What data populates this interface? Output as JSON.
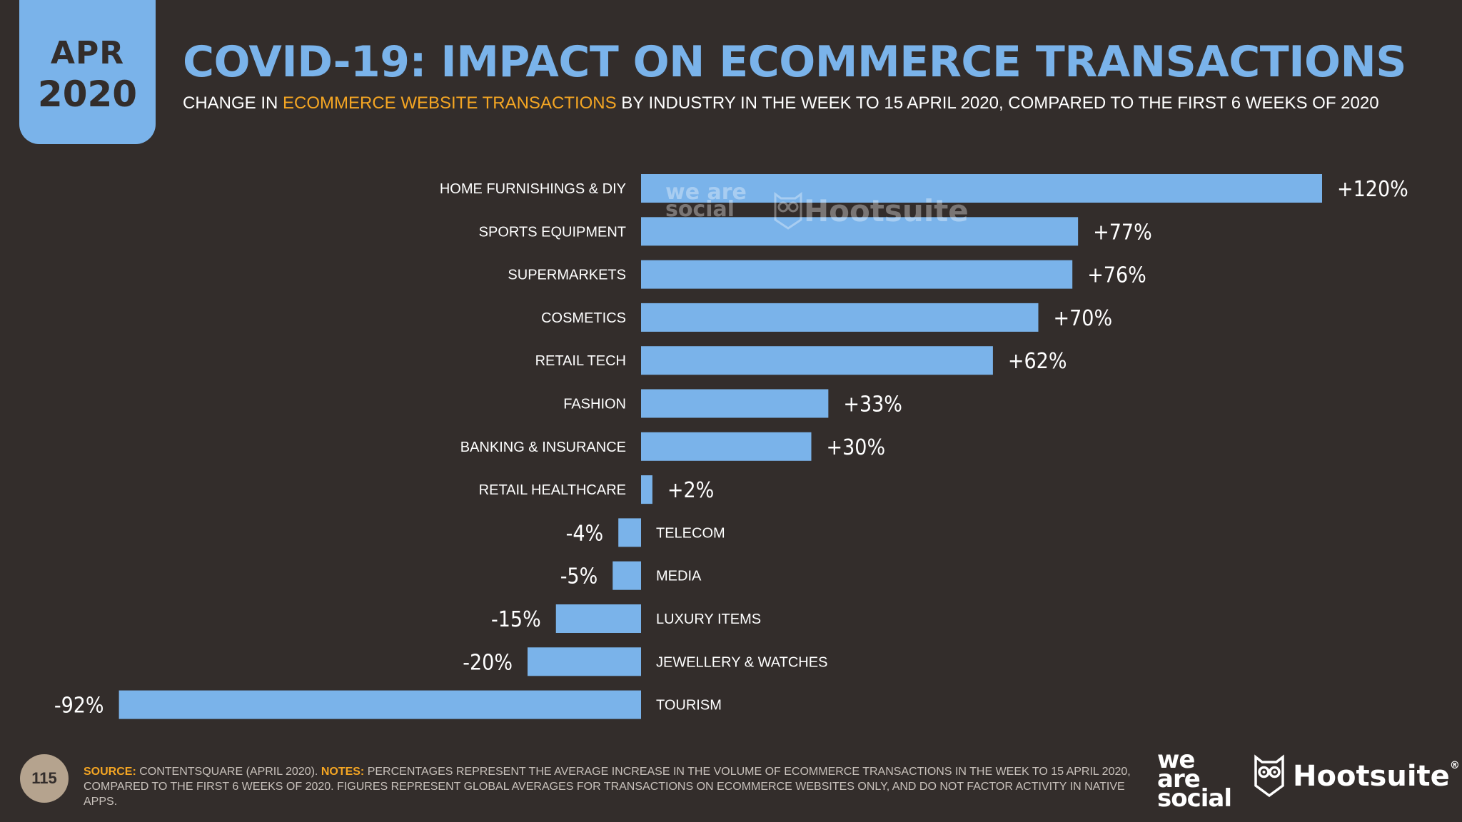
{
  "badge": {
    "month": "APR",
    "year": "2020"
  },
  "title": "COVID-19: IMPACT ON ECOMMERCE TRANSACTIONS",
  "subtitle": {
    "prefix": "CHANGE IN ",
    "highlight": "ECOMMERCE WEBSITE TRANSACTIONS",
    "suffix": " BY INDUSTRY IN THE WEEK TO 15 APRIL 2020, COMPARED TO THE FIRST 6 WEEKS OF 2020"
  },
  "colors": {
    "background": "#332d2b",
    "bar": "#7ab3ea",
    "highlight": "#f5a623",
    "page_badge": "#b5a38e"
  },
  "chart_data": {
    "type": "bar",
    "orientation": "horizontal",
    "unit": "%",
    "categories": [
      "HOME FURNISHINGS & DIY",
      "SPORTS EQUIPMENT",
      "SUPERMARKETS",
      "COSMETICS",
      "RETAIL TECH",
      "FASHION",
      "BANKING & INSURANCE",
      "RETAIL HEALTHCARE",
      "TELECOM",
      "MEDIA",
      "LUXURY ITEMS",
      "JEWELLERY & WATCHES",
      "TOURISM"
    ],
    "values": [
      120,
      77,
      76,
      70,
      62,
      33,
      30,
      2,
      -4,
      -5,
      -15,
      -20,
      -92
    ],
    "value_labels": [
      "+120%",
      "+77%",
      "+76%",
      "+70%",
      "+62%",
      "+33%",
      "+30%",
      "+2%",
      "-4%",
      "-5%",
      "-15%",
      "-20%",
      "-92%"
    ],
    "xlim": [
      -92,
      120
    ],
    "grid": false
  },
  "watermark": {
    "was": "we are social",
    "hootsuite": "Hootsuite"
  },
  "footer": {
    "page_number": "115",
    "source_key": "SOURCE:",
    "source_text": " CONTENTSQUARE (APRIL 2020). ",
    "notes_key": "NOTES:",
    "notes_text": " PERCENTAGES REPRESENT THE AVERAGE INCREASE IN THE VOLUME OF ECOMMERCE TRANSACTIONS IN THE WEEK TO 15 APRIL 2020, COMPARED TO THE FIRST 6 WEEKS OF 2020. FIGURES REPRESENT GLOBAL AVERAGES FOR TRANSACTIONS ON ECOMMERCE WEBSITES ONLY, AND DO NOT FACTOR ACTIVITY IN NATIVE APPS."
  },
  "logos": {
    "we_are_social": [
      "we",
      "are",
      "social"
    ],
    "hootsuite": "Hootsuite",
    "hootsuite_reg": "®"
  }
}
